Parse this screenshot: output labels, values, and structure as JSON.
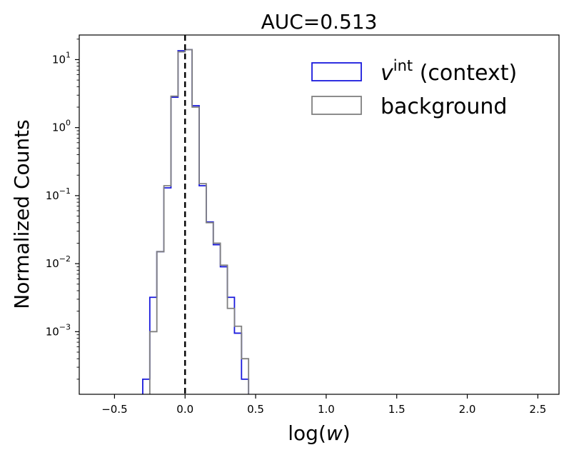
{
  "chart_data": {
    "type": "histogram",
    "title": "AUC=0.513",
    "xlabel": "log(w)",
    "ylabel": "Normalized Counts",
    "xlim": [
      -0.75,
      2.65
    ],
    "ylim": [
      0.00012,
      23
    ],
    "yscale": "log",
    "grid": false,
    "legend_position": "top-right",
    "bin_width": 0.05,
    "x_ticks": [
      {
        "value": -0.5,
        "label": "−0.5"
      },
      {
        "value": 0.0,
        "label": "0.0"
      },
      {
        "value": 0.5,
        "label": "0.5"
      },
      {
        "value": 1.0,
        "label": "1.0"
      },
      {
        "value": 1.5,
        "label": "1.5"
      },
      {
        "value": 2.0,
        "label": "2.0"
      },
      {
        "value": 2.5,
        "label": "2.5"
      }
    ],
    "y_ticks": [
      {
        "value": 0.001,
        "base": "10",
        "exp": "−3"
      },
      {
        "value": 0.01,
        "base": "10",
        "exp": "−2"
      },
      {
        "value": 0.1,
        "base": "10",
        "exp": "−1"
      },
      {
        "value": 1,
        "base": "10",
        "exp": "0"
      },
      {
        "value": 10,
        "base": "10",
        "exp": "1"
      }
    ],
    "reference_line": {
      "x": 0.0,
      "style": "dashed",
      "color": "#000000"
    },
    "series": [
      {
        "legend": {
          "main": "v",
          "sup": "int",
          "suffix": " (context)"
        },
        "color": "#1a1adc",
        "bins": [
          [
            -0.3,
            0.0002
          ],
          [
            -0.25,
            0.0032
          ],
          [
            -0.2,
            0.015
          ],
          [
            -0.15,
            0.13
          ],
          [
            -0.1,
            2.8
          ],
          [
            -0.05,
            13.5
          ],
          [
            0.0,
            14.0
          ],
          [
            0.05,
            2.1
          ],
          [
            0.1,
            0.14
          ],
          [
            0.15,
            0.041
          ],
          [
            0.2,
            0.019
          ],
          [
            0.25,
            0.009
          ],
          [
            0.3,
            0.0032
          ],
          [
            0.35,
            0.00095
          ],
          [
            0.4,
            0.0002
          ]
        ]
      },
      {
        "legend": {
          "main": "background",
          "sup": "",
          "suffix": ""
        },
        "color": "#808080",
        "bins": [
          [
            -0.25,
            0.001
          ],
          [
            -0.2,
            0.015
          ],
          [
            -0.15,
            0.14
          ],
          [
            -0.1,
            2.9
          ],
          [
            -0.05,
            13.0
          ],
          [
            0.0,
            14.0
          ],
          [
            0.05,
            2.0
          ],
          [
            0.1,
            0.15
          ],
          [
            0.15,
            0.04
          ],
          [
            0.2,
            0.02
          ],
          [
            0.25,
            0.0095
          ],
          [
            0.3,
            0.0022
          ],
          [
            0.35,
            0.0012
          ],
          [
            0.4,
            0.0004
          ]
        ]
      }
    ]
  }
}
